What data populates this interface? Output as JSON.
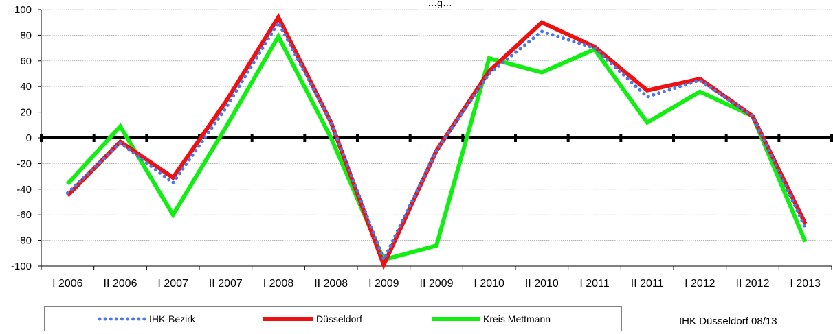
{
  "chart_data": {
    "type": "line",
    "title": "…g…",
    "xlabel": "",
    "ylabel": "",
    "ylim": [
      -100,
      100
    ],
    "yticks": [
      -100,
      -80,
      -60,
      -40,
      -20,
      0,
      20,
      40,
      60,
      80,
      100
    ],
    "categories": [
      "I 2006",
      "II 2006",
      "I 2007",
      "II 2007",
      "I 2008",
      "II 2008",
      "I 2009",
      "II 2009",
      "I 2010",
      "II 2010",
      "I 2011",
      "II 2011",
      "I 2012",
      "II 2012",
      "I 2013"
    ],
    "grid": true,
    "legend_position": "bottom",
    "zero_line": true,
    "series": [
      {
        "name": "IHK-Bezirk",
        "style": "dotted",
        "color": "#4a78e8",
        "values": [
          -43,
          -4,
          -35,
          23,
          90,
          12,
          -95,
          -10,
          50,
          83,
          70,
          32,
          45,
          17,
          -70
        ]
      },
      {
        "name": "Düsseldorf",
        "style": "solid",
        "color": "#ee1111",
        "values": [
          -45,
          -3,
          -31,
          28,
          94,
          12,
          -99,
          -10,
          52,
          90,
          71,
          37,
          46,
          17,
          -67
        ]
      },
      {
        "name": "Kreis Mettmann",
        "style": "solid",
        "color": "#11ee11",
        "values": [
          -36,
          9,
          -60,
          8,
          79,
          0,
          -95,
          -84,
          62,
          51,
          69,
          12,
          36,
          17,
          -81
        ]
      }
    ]
  },
  "source_note": "IHK Düsseldorf 08/13"
}
